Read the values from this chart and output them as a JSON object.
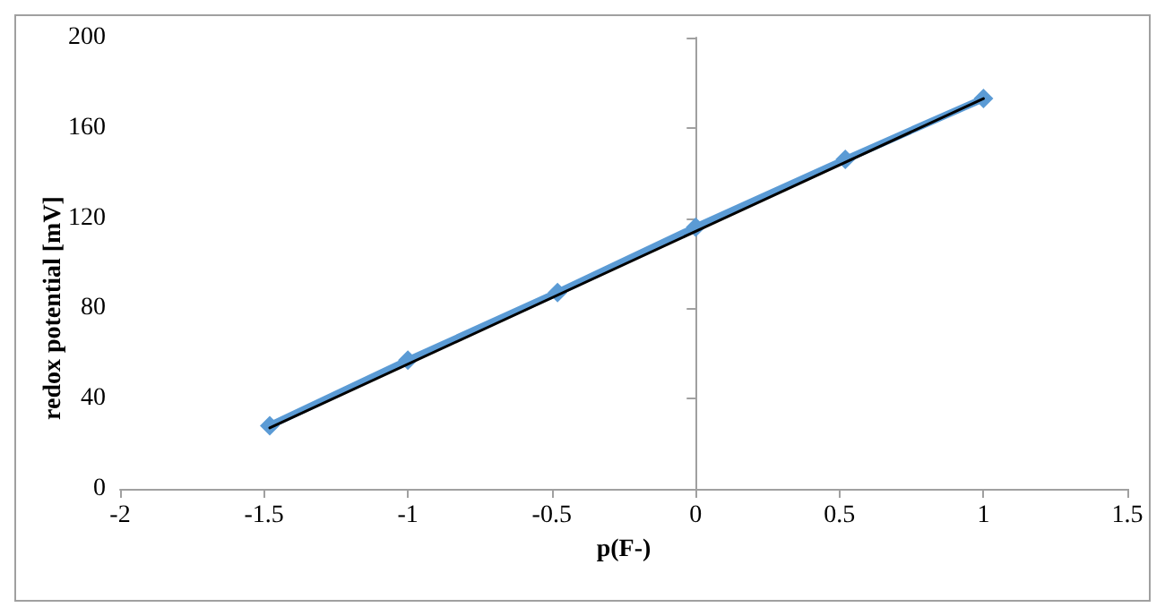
{
  "chart_data": {
    "type": "line",
    "xlabel": "p(F-)",
    "ylabel": "redox potential [mV]",
    "xlim": [
      -2,
      1.5
    ],
    "xticks": [
      -2,
      -1.5,
      -1,
      -0.5,
      0,
      0.5,
      1,
      1.5
    ],
    "ylim": [
      0,
      200
    ],
    "yticks": [
      0,
      40,
      80,
      120,
      160,
      200
    ],
    "series": [
      {
        "color": "#5b9bd5",
        "marker": "diamond",
        "x": [
          -1.48,
          -1,
          -0.48,
          0,
          0.52,
          1
        ],
        "values": [
          28,
          57,
          87,
          116,
          146,
          173
        ]
      },
      {
        "color": "#000000",
        "marker": "none",
        "x": [
          -1.48,
          1
        ],
        "values": [
          27,
          173
        ]
      }
    ]
  }
}
